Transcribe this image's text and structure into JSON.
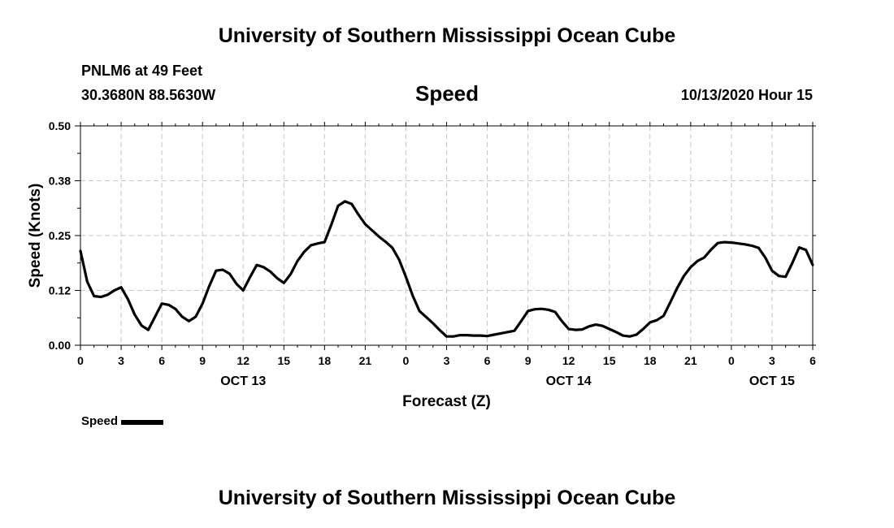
{
  "header": {
    "title": "University of Southern Mississippi Ocean Cube",
    "station": "PNLM6 at 49 Feet",
    "coords": "30.3680N 88.5630W",
    "variable": "Speed",
    "datetime": "10/13/2020 Hour 15"
  },
  "footer": {
    "title": "University of Southern Mississippi Ocean Cube"
  },
  "chart_data": {
    "type": "line",
    "xlabel": "Forecast (Z)",
    "ylabel": "Speed (Knots)",
    "x_range_hours": [
      0,
      54
    ],
    "x_tick_hours": [
      0,
      3,
      6,
      9,
      12,
      15,
      18,
      21,
      24,
      27,
      30,
      33,
      36,
      39,
      42,
      45,
      48,
      51,
      54
    ],
    "x_tick_labels": [
      "0",
      "3",
      "6",
      "9",
      "12",
      "15",
      "18",
      "21",
      "0",
      "3",
      "6",
      "9",
      "12",
      "15",
      "18",
      "21",
      "0",
      "3",
      "6"
    ],
    "date_labels": [
      {
        "hour": 12,
        "text": "OCT 13"
      },
      {
        "hour": 36,
        "text": "OCT 14"
      },
      {
        "hour": 51,
        "text": "OCT 15"
      }
    ],
    "ylim": [
      0,
      0.5
    ],
    "y_ticks": [
      0,
      0.125,
      0.25,
      0.375,
      0.5
    ],
    "y_tick_labels": [
      "0.00",
      "0.12",
      "0.25",
      "0.38",
      "0.50"
    ],
    "grid": true,
    "color": "#000000",
    "legend": {
      "label": "Speed",
      "position": "bottom-left"
    },
    "series": [
      {
        "name": "Speed",
        "x": [
          0,
          0.5,
          1,
          1.5,
          2,
          2.5,
          3,
          3.5,
          4,
          4.5,
          5,
          5.5,
          6,
          6.5,
          7,
          7.5,
          8,
          8.5,
          9,
          9.5,
          10,
          10.5,
          11,
          11.5,
          12,
          12.5,
          13,
          13.5,
          14,
          14.5,
          15,
          15.5,
          16,
          16.5,
          17,
          17.5,
          18,
          18.5,
          19,
          19.5,
          20,
          20.5,
          21,
          21.5,
          22,
          22.5,
          23,
          23.5,
          24,
          24.5,
          25,
          25.5,
          26,
          26.5,
          27,
          27.5,
          28,
          28.5,
          29,
          29.5,
          30,
          30.5,
          31,
          31.5,
          32,
          32.5,
          33,
          33.5,
          34,
          34.5,
          35,
          35.5,
          36,
          36.5,
          37,
          37.5,
          38,
          38.5,
          39,
          39.5,
          40,
          40.5,
          41,
          41.5,
          42,
          42.5,
          43,
          43.5,
          44,
          44.5,
          45,
          45.5,
          46,
          46.5,
          47,
          47.5,
          48,
          48.5,
          49,
          49.5,
          50,
          50.5,
          51,
          51.5,
          52,
          52.5,
          53,
          53.5,
          54
        ],
        "values": [
          0.215,
          0.145,
          0.112,
          0.11,
          0.115,
          0.125,
          0.132,
          0.105,
          0.07,
          0.045,
          0.035,
          0.065,
          0.095,
          0.092,
          0.083,
          0.065,
          0.055,
          0.065,
          0.095,
          0.135,
          0.17,
          0.172,
          0.163,
          0.14,
          0.125,
          0.155,
          0.183,
          0.178,
          0.168,
          0.153,
          0.142,
          0.162,
          0.192,
          0.213,
          0.228,
          0.232,
          0.235,
          0.275,
          0.318,
          0.328,
          0.322,
          0.298,
          0.276,
          0.262,
          0.248,
          0.236,
          0.222,
          0.195,
          0.156,
          0.113,
          0.078,
          0.064,
          0.05,
          0.034,
          0.02,
          0.02,
          0.023,
          0.023,
          0.022,
          0.022,
          0.021,
          0.024,
          0.027,
          0.03,
          0.033,
          0.055,
          0.078,
          0.082,
          0.083,
          0.081,
          0.076,
          0.055,
          0.037,
          0.035,
          0.036,
          0.043,
          0.047,
          0.044,
          0.037,
          0.03,
          0.022,
          0.02,
          0.024,
          0.037,
          0.052,
          0.057,
          0.067,
          0.098,
          0.13,
          0.158,
          0.178,
          0.192,
          0.2,
          0.218,
          0.233,
          0.235,
          0.234,
          0.232,
          0.23,
          0.227,
          0.222,
          0.2,
          0.17,
          0.158,
          0.156,
          0.188,
          0.223,
          0.217,
          0.183
        ]
      }
    ]
  }
}
